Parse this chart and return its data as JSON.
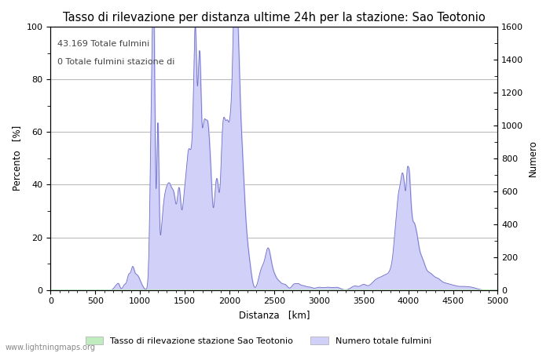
{
  "title": "Tasso di rilevazione per distanza ultime 24h per la stazione: Sao Teotonio",
  "xlabel": "Distanza   [km]",
  "ylabel_left": "Percento   [%]",
  "ylabel_right": "Numero",
  "annotation_line1": "43.169 Totale fulmini",
  "annotation_line2": "0 Totale fulmini stazione di",
  "legend_label1": "Tasso di rilevazione stazione Sao Teotonio",
  "legend_label2": "Numero totale fulmini",
  "watermark": "www.lightningmaps.org",
  "xlim": [
    0,
    5000
  ],
  "ylim_left": [
    0,
    100
  ],
  "ylim_right": [
    0,
    1600
  ],
  "fill_color_blue": "#d0d0f8",
  "fill_color_green": "#c0ecc0",
  "line_color_blue": "#7070c8",
  "line_color_green": "#70b870",
  "background_color": "#ffffff",
  "grid_color": "#bbbbbb",
  "title_fontsize": 10.5,
  "label_fontsize": 8.5,
  "tick_fontsize": 8,
  "annotation_fontsize": 8
}
